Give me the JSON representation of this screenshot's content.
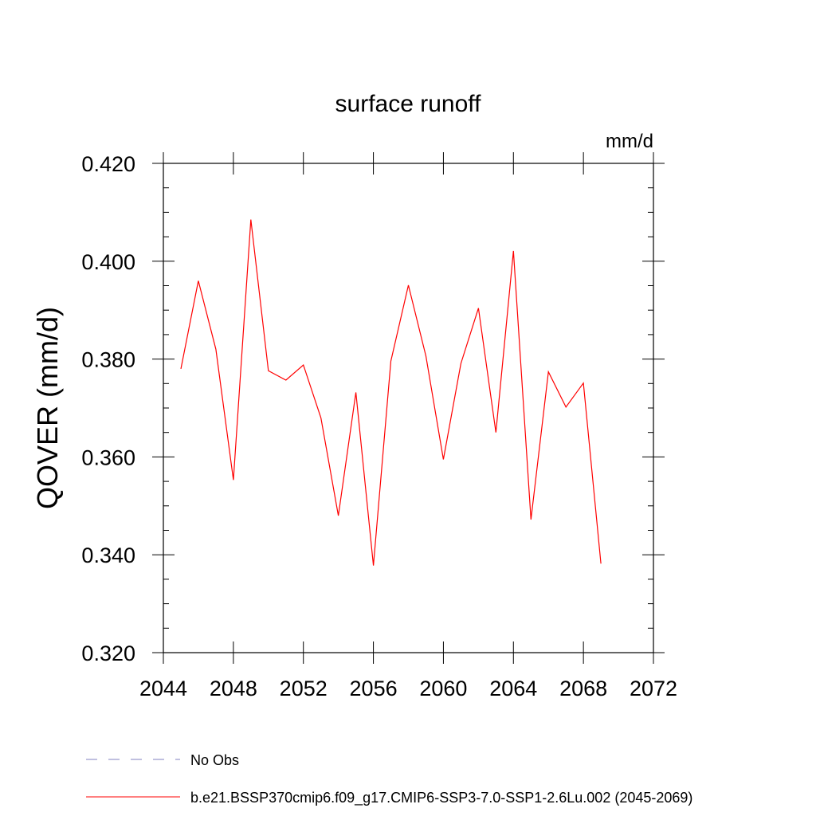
{
  "chart_data": {
    "type": "line",
    "title": "surface runoff",
    "units_label": "mm/d",
    "ylabel": "QOVER  (mm/d)",
    "xlabel": "",
    "xlim": [
      2044,
      2072
    ],
    "ylim": [
      0.32,
      0.42
    ],
    "x_ticks": [
      2044,
      2048,
      2052,
      2056,
      2060,
      2064,
      2068,
      2072
    ],
    "x_tick_labels": [
      "2044",
      "2048",
      "2052",
      "2056",
      "2060",
      "2064",
      "2068",
      "2072"
    ],
    "y_ticks": [
      0.32,
      0.34,
      0.36,
      0.38,
      0.4,
      0.42
    ],
    "y_tick_labels": [
      "0.320",
      "0.340",
      "0.360",
      "0.380",
      "0.400",
      "0.420"
    ],
    "series": [
      {
        "name": "b.e21.BSSP370cmip6.f09_g17.CMIP6-SSP3-7.0-SSP1-2.6Lu.002 (2045-2069)",
        "color": "#ff0000",
        "x": [
          2045,
          2046,
          2047,
          2048,
          2049,
          2050,
          2051,
          2052,
          2053,
          2054,
          2055,
          2056,
          2057,
          2058,
          2059,
          2060,
          2061,
          2062,
          2063,
          2064,
          2065,
          2066,
          2067,
          2068,
          2069
        ],
        "values": [
          0.378,
          0.396,
          0.382,
          0.3553,
          0.4085,
          0.3776,
          0.3757,
          0.3788,
          0.368,
          0.348,
          0.3732,
          0.3378,
          0.3796,
          0.3951,
          0.3806,
          0.3595,
          0.3791,
          0.3904,
          0.365,
          0.4021,
          0.3472,
          0.3774,
          0.3702,
          0.3751,
          0.3382
        ]
      }
    ],
    "legend": [
      {
        "label": "No Obs",
        "style": "dashed",
        "color": "#8080c0"
      },
      {
        "label": "b.e21.BSSP370cmip6.f09_g17.CMIP6-SSP3-7.0-SSP1-2.6Lu.002 (2045-2069)",
        "style": "solid",
        "color": "#ff0000"
      }
    ]
  }
}
